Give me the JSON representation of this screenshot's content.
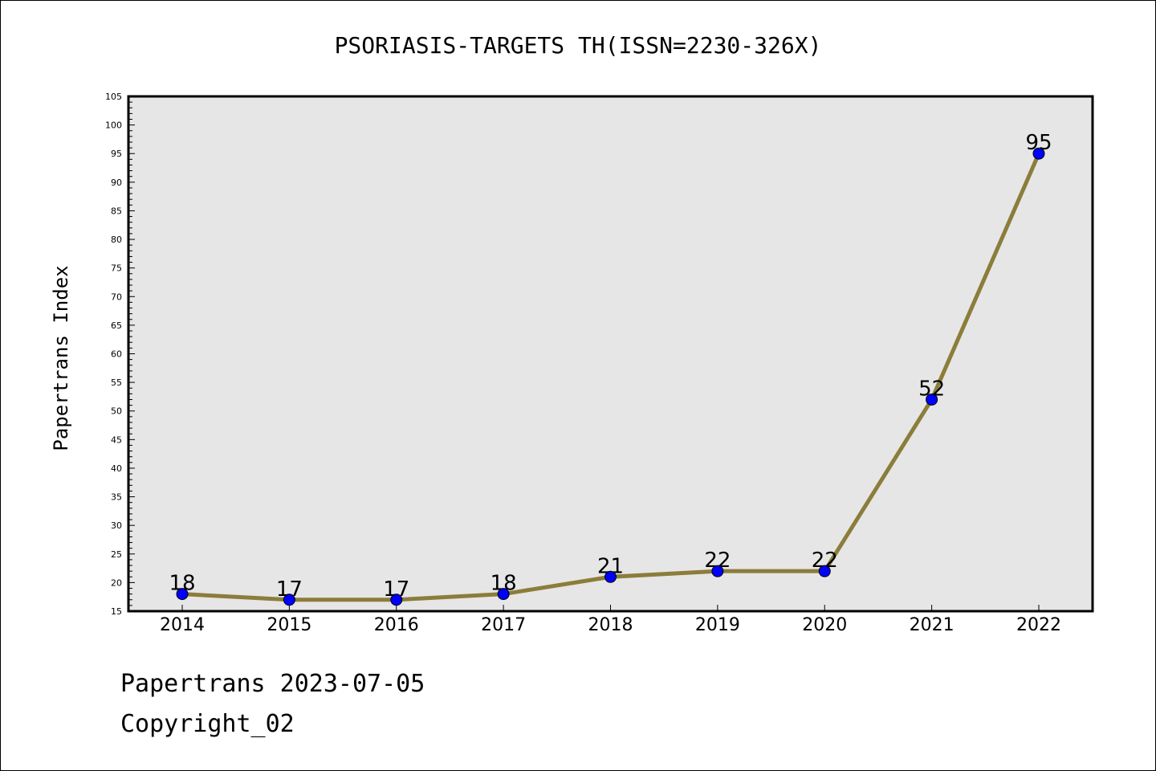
{
  "chart_data": {
    "type": "line",
    "title": "PSORIASIS-TARGETS TH(ISSN=2230-326X)",
    "xlabel": "",
    "ylabel": "Papertrans Index",
    "categories": [
      "2014",
      "2015",
      "2016",
      "2017",
      "2018",
      "2019",
      "2020",
      "2021",
      "2022"
    ],
    "series": [
      {
        "values": [
          18,
          17,
          17,
          18,
          21,
          22,
          22,
          52,
          95
        ]
      }
    ],
    "data_labels": [
      "18",
      "17",
      "17",
      "18",
      "21",
      "22",
      "22",
      "52",
      "95"
    ],
    "ylim": [
      15,
      105
    ],
    "yticks": [
      15,
      20,
      25,
      30,
      35,
      40,
      45,
      50,
      55,
      60,
      65,
      70,
      75,
      80,
      85,
      90,
      95,
      100,
      105
    ],
    "grid": false,
    "colors": {
      "line": "#8b7d3a",
      "marker": "#0000ff",
      "plot_bg": "#e6e6e6"
    }
  },
  "footer": {
    "date_text": "Papertrans 2023-07-05",
    "copyright_text": "Copyright_02"
  }
}
